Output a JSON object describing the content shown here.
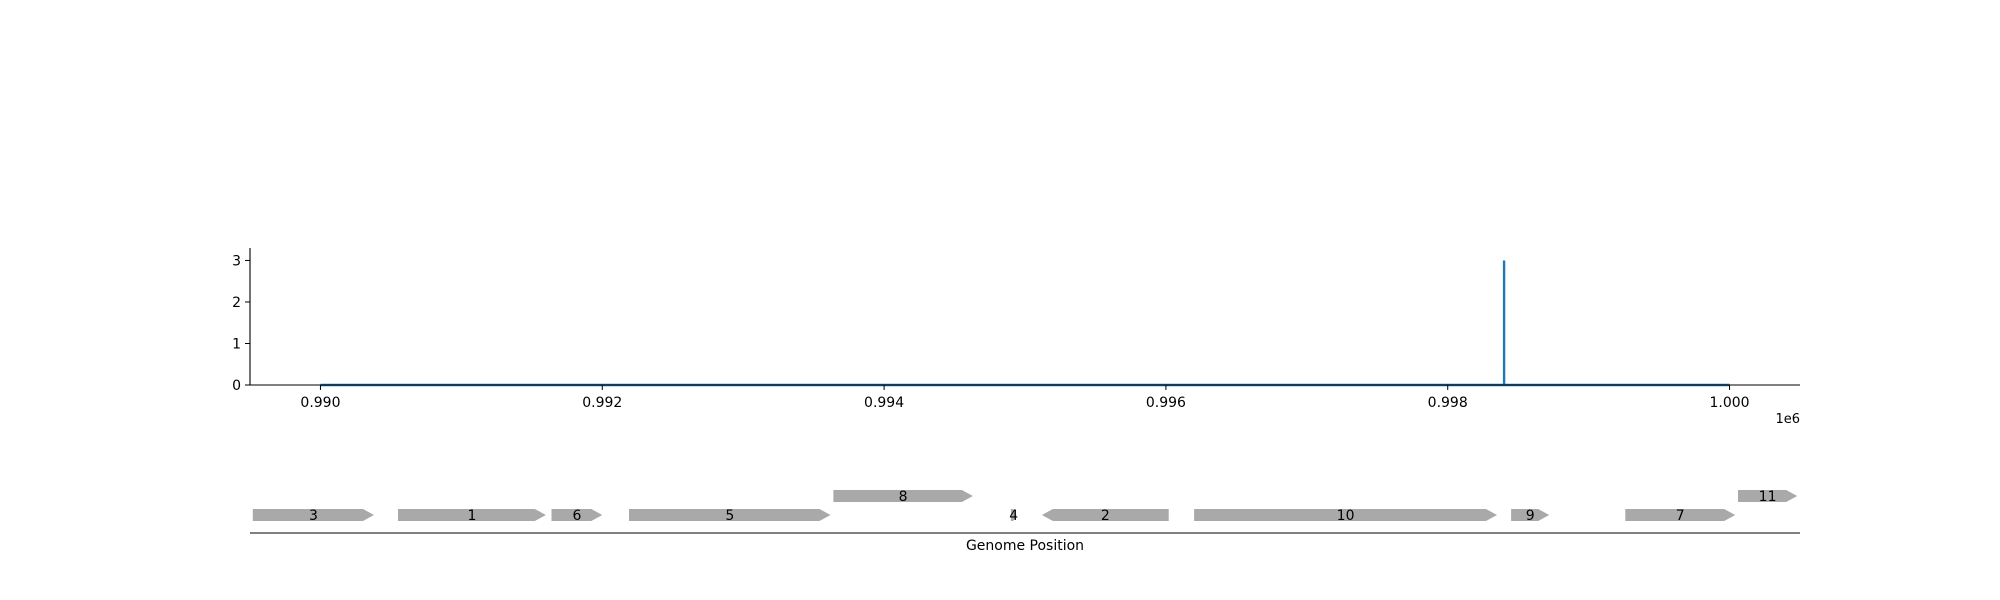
{
  "chart_data": [
    {
      "type": "line",
      "x_range": [
        989500,
        1000500
      ],
      "y_range": [
        0,
        3.3
      ],
      "x_ticks": [
        990000,
        992000,
        994000,
        996000,
        998000,
        1000000
      ],
      "x_tick_labels": [
        "0.990",
        "0.992",
        "0.994",
        "0.996",
        "0.998",
        "1.000"
      ],
      "x_offset_label": "1e6",
      "y_ticks": [
        0,
        1,
        2,
        3
      ],
      "y_tick_labels": [
        "0",
        "1",
        "2",
        "3"
      ],
      "series": [
        {
          "color": "#1f77b4",
          "points": [
            [
              990000,
              0
            ],
            [
              998400,
              0
            ],
            [
              998400,
              3
            ],
            [
              998400,
              0
            ],
            [
              1000000,
              0
            ]
          ]
        }
      ]
    },
    {
      "type": "gene-map",
      "xlabel": "Genome Position",
      "x_range": [
        989500,
        1000500
      ],
      "feature_color": "#a9a9a9",
      "features": [
        {
          "label": "3",
          "start": 989520,
          "end": 990380,
          "strand": "+",
          "row": 0
        },
        {
          "label": "1",
          "start": 990550,
          "end": 991600,
          "strand": "+",
          "row": 0
        },
        {
          "label": "6",
          "start": 991640,
          "end": 992000,
          "strand": "+",
          "row": 0
        },
        {
          "label": "5",
          "start": 992190,
          "end": 993620,
          "strand": "+",
          "row": 0
        },
        {
          "label": "8",
          "start": 993640,
          "end": 994630,
          "strand": "+",
          "row": 1
        },
        {
          "label": "4",
          "start": 994900,
          "end": 994940,
          "strand": "+",
          "row": 0
        },
        {
          "label": "2",
          "start": 995120,
          "end": 996020,
          "strand": "-",
          "row": 0
        },
        {
          "label": "10",
          "start": 996200,
          "end": 998350,
          "strand": "+",
          "row": 0
        },
        {
          "label": "9",
          "start": 998450,
          "end": 998720,
          "strand": "+",
          "row": 0
        },
        {
          "label": "7",
          "start": 999260,
          "end": 1000040,
          "strand": "+",
          "row": 0
        },
        {
          "label": "11",
          "start": 1000060,
          "end": 1000480,
          "strand": "+",
          "row": 1
        }
      ]
    }
  ]
}
